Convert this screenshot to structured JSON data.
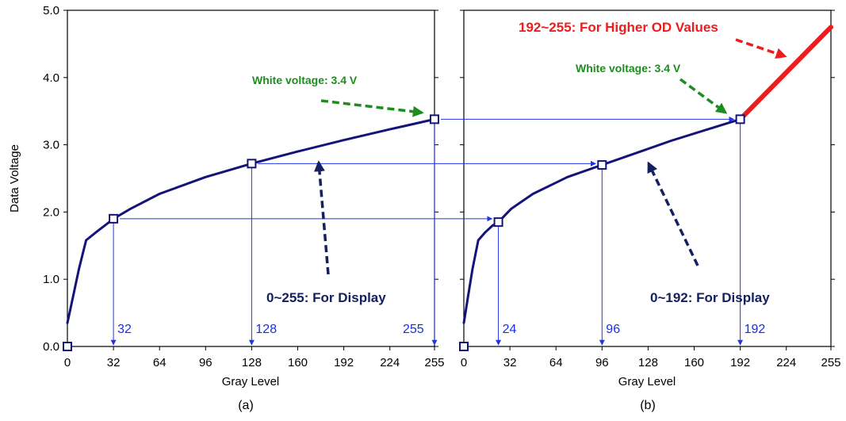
{
  "chart_data": [
    {
      "panel": "(a)",
      "type": "line",
      "xlabel": "Gray Level",
      "ylabel": "Data Voltage",
      "xlim": [
        0,
        255
      ],
      "ylim": [
        0.0,
        5.0
      ],
      "xticks": [
        0,
        32,
        64,
        96,
        128,
        160,
        192,
        224,
        255
      ],
      "yticks": [
        0.0,
        1.0,
        2.0,
        3.0,
        4.0,
        5.0
      ],
      "ytick_labels": [
        "0.0",
        "1.0",
        "2.0",
        "3.0",
        "4.0",
        "5.0"
      ],
      "series": [
        {
          "color": "#141478",
          "points": [
            [
              0,
              0.35
            ],
            [
              4,
              0.75
            ],
            [
              8,
              1.15
            ],
            [
              13,
              1.58
            ],
            [
              20,
              1.7
            ],
            [
              26,
              1.8
            ],
            [
              32,
              1.9
            ],
            [
              44,
              2.05
            ],
            [
              64,
              2.27
            ],
            [
              96,
              2.52
            ],
            [
              128,
              2.72
            ],
            [
              160,
              2.9
            ],
            [
              192,
              3.07
            ],
            [
              224,
              3.23
            ],
            [
              255,
              3.38
            ]
          ]
        }
      ],
      "markers": [
        [
          0,
          0.0
        ],
        [
          32,
          1.9
        ],
        [
          128,
          2.72
        ],
        [
          255,
          3.38
        ]
      ],
      "gray_level_labels": [
        {
          "x": 32,
          "label": "32"
        },
        {
          "x": 128,
          "label": "128"
        },
        {
          "x": 255,
          "label": "255"
        }
      ],
      "annotations": {
        "white_voltage": "White voltage: 3.4 V",
        "range": "0~255: For Display"
      },
      "grid": false
    },
    {
      "panel": "(b)",
      "type": "line",
      "xlabel": "Gray Level",
      "ylabel": "",
      "xlim": [
        0,
        255
      ],
      "ylim": [
        0.0,
        5.0
      ],
      "xticks": [
        0,
        32,
        64,
        96,
        128,
        160,
        192,
        224,
        255
      ],
      "yticks": [
        0.0,
        1.0,
        2.0,
        3.0,
        4.0,
        5.0
      ],
      "series": [
        {
          "color": "#141478",
          "points": [
            [
              0,
              0.35
            ],
            [
              3,
              0.75
            ],
            [
              6,
              1.15
            ],
            [
              10,
              1.58
            ],
            [
              15,
              1.7
            ],
            [
              20,
              1.8
            ],
            [
              24,
              1.85
            ],
            [
              33,
              2.05
            ],
            [
              48,
              2.27
            ],
            [
              72,
              2.52
            ],
            [
              96,
              2.7
            ],
            [
              120,
              2.88
            ],
            [
              144,
              3.06
            ],
            [
              168,
              3.22
            ],
            [
              192,
              3.38
            ]
          ]
        },
        {
          "color": "#ee1c1c",
          "points": [
            [
              192,
              3.38
            ],
            [
              255,
              4.75
            ]
          ]
        }
      ],
      "markers": [
        [
          0,
          0.0
        ],
        [
          24,
          1.85
        ],
        [
          96,
          2.7
        ],
        [
          192,
          3.38
        ]
      ],
      "gray_level_labels": [
        {
          "x": 24,
          "label": "24"
        },
        {
          "x": 96,
          "label": "96"
        },
        {
          "x": 192,
          "label": "192"
        }
      ],
      "annotations": {
        "white_voltage": "White voltage: 3.4 V",
        "range": "0~192: For Display",
        "higher_od": "192~255: For Higher OD Values"
      },
      "grid": false
    }
  ],
  "colors": {
    "curve": "#141478",
    "marker_fill": "#ffffff",
    "marker_stroke": "#141478",
    "guide_lines": "#2233ee",
    "guide_label": "#1a2cf0",
    "white_voltage_text": "#1f8c1f",
    "green_arrow": "#1f8c1f",
    "display_text": "#142060",
    "navy_arrow": "#142060",
    "od_line": "#ee1c1c",
    "od_text": "#ee1c1c"
  }
}
